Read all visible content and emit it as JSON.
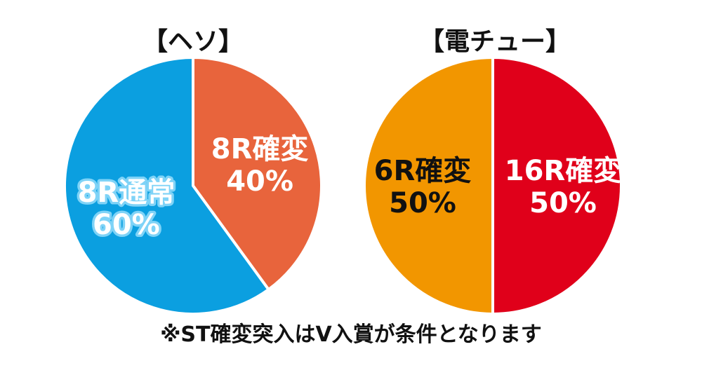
{
  "chart_data": [
    {
      "type": "pie",
      "title": "【ヘソ】",
      "slices": [
        {
          "label": "8R確変",
          "percent_label": "40%",
          "value": 40,
          "color": "#e8643c",
          "text_color": "#ffffff",
          "outline": "none"
        },
        {
          "label": "8R通常",
          "percent_label": "60%",
          "value": 60,
          "color": "#0b9fe0",
          "text_color": "#ffffff",
          "outline": "#7fd3f7"
        }
      ]
    },
    {
      "type": "pie",
      "title": "【電チュー】",
      "slices": [
        {
          "label": "16R確変",
          "percent_label": "50%",
          "value": 50,
          "color": "#e0001a",
          "text_color": "#ffffff",
          "outline": "none"
        },
        {
          "label": "6R確変",
          "percent_label": "50%",
          "value": 50,
          "color": "#f29600",
          "text_color": "#111111",
          "outline": "none"
        }
      ]
    }
  ],
  "footnote": "※ST確変突入はV入賞が条件となります"
}
